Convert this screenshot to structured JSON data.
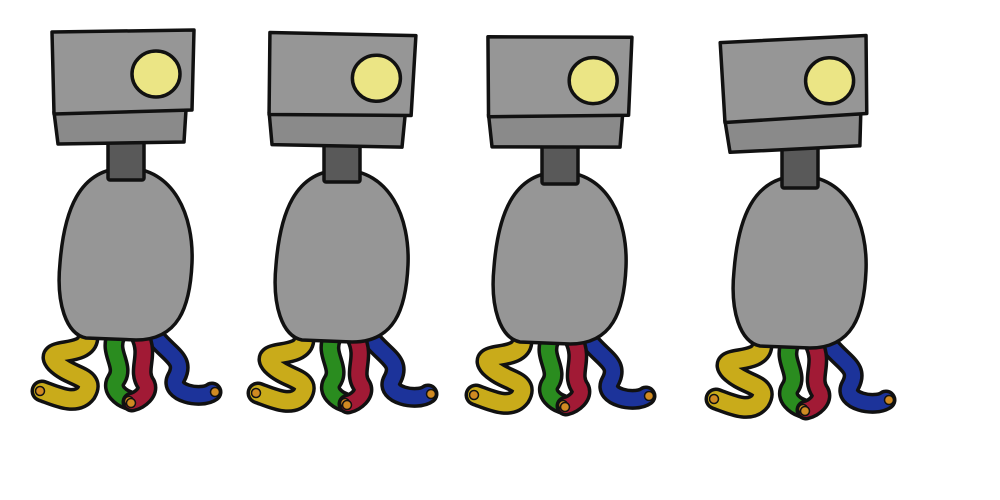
{
  "palette": {
    "background": "#ffffff",
    "outline": "#111111",
    "head": "#969696",
    "head_shadow": "#8a8a8a",
    "neck": "#595959",
    "body": "#969696",
    "eye": "#ebe585",
    "tentacle_yellow": "#c9ab1a",
    "tentacle_green": "#2a8c1f",
    "tentacle_red": "#a11a35",
    "tentacle_blue": "#1c339a",
    "tentacle_tip": "#d08a22"
  },
  "sprite_sheet": {
    "frame_count": 4,
    "frames": [
      {
        "name": "robot-frame-1",
        "head_tilt_deg": 0
      },
      {
        "name": "robot-frame-2",
        "head_tilt_deg": 2
      },
      {
        "name": "robot-frame-3",
        "head_tilt_deg": 1
      },
      {
        "name": "robot-frame-4",
        "head_tilt_deg": -2
      }
    ],
    "icons": {
      "head": "robot-head-icon",
      "eye": "robot-eye-icon",
      "neck": "robot-neck-icon",
      "body": "robot-body-icon",
      "tentacles": "robot-tentacles-icon"
    }
  }
}
